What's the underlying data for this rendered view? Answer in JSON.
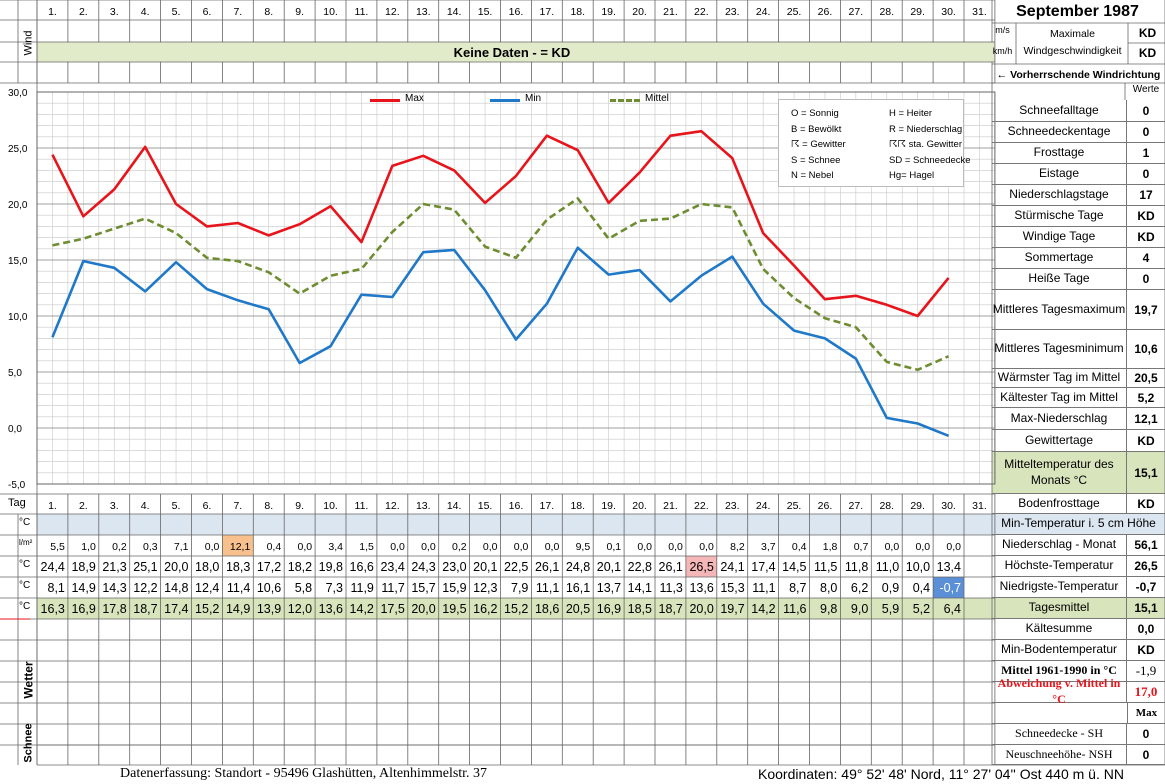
{
  "header": {
    "title": "September 1987",
    "day_labels": [
      "1.",
      "2.",
      "3.",
      "4.",
      "5.",
      "6.",
      "7.",
      "8.",
      "9.",
      "10.",
      "11.",
      "12.",
      "13.",
      "14.",
      "15.",
      "16.",
      "17.",
      "18.",
      "19.",
      "20.",
      "21.",
      "22.",
      "23.",
      "24.",
      "25.",
      "26.",
      "27.",
      "28.",
      "29.",
      "30.",
      "31."
    ],
    "wind_label": "Wind",
    "tag_label": "Tag",
    "no_data_text": "Keine Daten -  = KD",
    "unit_ms": "m/s",
    "unit_kmh": "km/h",
    "max_wind_label": "Maximale Windgeschwindigkeit",
    "max_wind_ms": "KD",
    "max_wind_kmh": "KD",
    "wind_direction_label": "← Vorherrschende Windrichtung",
    "werte_label": "Werte"
  },
  "legend_symbols": [
    "O = Sonnig",
    "H = Heiter",
    "B = Bewölkt",
    "R = Niederschlag",
    "☈ = Gewitter",
    "☈☈ sta. Gewitter",
    "S = Schnee",
    "SD = Schneedecke",
    "N = Nebel",
    "Hg= Hagel"
  ],
  "chart_data": {
    "type": "line",
    "categories": [
      "1",
      "2",
      "3",
      "4",
      "5",
      "6",
      "7",
      "8",
      "9",
      "10",
      "11",
      "12",
      "13",
      "14",
      "15",
      "16",
      "17",
      "18",
      "19",
      "20",
      "21",
      "22",
      "23",
      "24",
      "25",
      "26",
      "27",
      "28",
      "29",
      "30"
    ],
    "series": [
      {
        "name": "Max",
        "color": "#e8141b",
        "dashed": false,
        "values": [
          24.4,
          18.9,
          21.3,
          25.1,
          20.0,
          18.0,
          18.3,
          17.2,
          18.2,
          19.8,
          16.6,
          23.4,
          24.3,
          23.0,
          20.1,
          22.5,
          26.1,
          24.8,
          20.1,
          22.8,
          26.1,
          26.5,
          24.1,
          17.4,
          14.5,
          11.5,
          11.8,
          11.0,
          10.0,
          13.4
        ]
      },
      {
        "name": "Min",
        "color": "#1f78c8",
        "dashed": false,
        "values": [
          8.1,
          14.9,
          14.3,
          12.2,
          14.8,
          12.4,
          11.4,
          10.6,
          5.8,
          7.3,
          11.9,
          11.7,
          15.7,
          15.9,
          12.3,
          7.9,
          11.1,
          16.1,
          13.7,
          14.1,
          11.3,
          13.6,
          15.3,
          11.1,
          8.7,
          8.0,
          6.2,
          0.9,
          0.4,
          -0.7
        ]
      },
      {
        "name": "Mittel",
        "color": "#6e8c30",
        "dashed": true,
        "values": [
          16.3,
          16.9,
          17.8,
          18.7,
          17.4,
          15.2,
          14.9,
          13.9,
          12.0,
          13.6,
          14.2,
          17.5,
          20.0,
          19.5,
          16.2,
          15.2,
          18.6,
          20.5,
          16.9,
          18.5,
          18.7,
          20.0,
          19.7,
          14.2,
          11.6,
          9.8,
          9.0,
          5.9,
          5.2,
          6.4
        ]
      }
    ],
    "ylim": [
      -5,
      30
    ],
    "ytick_labels": [
      "30,0",
      "25,0",
      "20,0",
      "15,0",
      "10,0",
      "5,0",
      "0,0",
      "-5,0"
    ],
    "grid": true,
    "legend": "top"
  },
  "table": {
    "row_units": [
      "°C",
      "l/m²",
      "°C",
      "°C",
      "°C"
    ],
    "rows": [
      {
        "name": "bodenminimum",
        "values": [
          "",
          "",
          "",
          "",
          "",
          "",
          "",
          "",
          "",
          "",
          "",
          "",
          "",
          "",
          "",
          "",
          "",
          "",
          "",
          "",
          "",
          "",
          "",
          "",
          "",
          "",
          "",
          "",
          "",
          ""
        ]
      },
      {
        "name": "niederschlag",
        "values": [
          "5,5",
          "1,0",
          "0,2",
          "0,3",
          "7,1",
          "0,0",
          "12,1",
          "0,4",
          "0,0",
          "3,4",
          "1,5",
          "0,0",
          "0,0",
          "0,2",
          "0,0",
          "0,0",
          "0,0",
          "9,5",
          "0,1",
          "0,0",
          "0,0",
          "0,0",
          "8,2",
          "3,7",
          "0,4",
          "1,8",
          "0,7",
          "0,0",
          "0,0",
          "0,0"
        ]
      },
      {
        "name": "max",
        "values": [
          "24,4",
          "18,9",
          "21,3",
          "25,1",
          "20,0",
          "18,0",
          "18,3",
          "17,2",
          "18,2",
          "19,8",
          "16,6",
          "23,4",
          "24,3",
          "23,0",
          "20,1",
          "22,5",
          "26,1",
          "24,8",
          "20,1",
          "22,8",
          "26,1",
          "26,5",
          "24,1",
          "17,4",
          "14,5",
          "11,5",
          "11,8",
          "11,0",
          "10,0",
          "13,4"
        ]
      },
      {
        "name": "min",
        "values": [
          "8,1",
          "14,9",
          "14,3",
          "12,2",
          "14,8",
          "12,4",
          "11,4",
          "10,6",
          "5,8",
          "7,3",
          "11,9",
          "11,7",
          "15,7",
          "15,9",
          "12,3",
          "7,9",
          "11,1",
          "16,1",
          "13,7",
          "14,1",
          "11,3",
          "13,6",
          "15,3",
          "11,1",
          "8,7",
          "8,0",
          "6,2",
          "0,9",
          "0,4",
          "-0,7"
        ]
      },
      {
        "name": "mittel",
        "values": [
          "16,3",
          "16,9",
          "17,8",
          "18,7",
          "17,4",
          "15,2",
          "14,9",
          "13,9",
          "12,0",
          "13,6",
          "14,2",
          "17,5",
          "20,0",
          "19,5",
          "16,2",
          "15,2",
          "18,6",
          "20,5",
          "16,9",
          "18,5",
          "18,7",
          "20,0",
          "19,7",
          "14,2",
          "11,6",
          "9,8",
          "9,0",
          "5,9",
          "5,2",
          "6,4"
        ]
      }
    ],
    "wetter_label": "Wetter",
    "schnee_label": "Schnee"
  },
  "stats": [
    {
      "label": "Schneefalltage",
      "value": "0"
    },
    {
      "label": "Schneedeckentage",
      "value": "0"
    },
    {
      "label": "Frosttage",
      "value": "1"
    },
    {
      "label": "Eistage",
      "value": "0"
    },
    {
      "label": "Niederschlagstage",
      "value": "17"
    },
    {
      "label": "Stürmische Tage",
      "value": "KD"
    },
    {
      "label": "Windige Tage",
      "value": "KD"
    },
    {
      "label": "Sommertage",
      "value": "4"
    },
    {
      "label": "Heiße Tage",
      "value": "0"
    },
    {
      "label": "Mittleres Tagesmaximum",
      "value": "19,7"
    },
    {
      "label": "Mittleres Tagesminimum",
      "value": "10,6"
    },
    {
      "label": "Wärmster Tag im Mittel",
      "value": "20,5"
    },
    {
      "label": "Kältester Tag im Mittel",
      "value": "5,2"
    },
    {
      "label": "Max-Niederschlag",
      "value": "12,1"
    },
    {
      "label": "Gewittertage",
      "value": "KD"
    },
    {
      "label": "Mitteltemperatur des Monats °C",
      "value": "15,1"
    },
    {
      "label": "Bodenfrosttage",
      "value": "KD"
    },
    {
      "label": "Min-Temperatur i. 5 cm Höhe",
      "value": ""
    },
    {
      "label": "Niederschlag - Monat",
      "value": "56,1"
    },
    {
      "label": "Höchste-Temperatur",
      "value": "26,5"
    },
    {
      "label": "Niedrigste-Temperatur",
      "value": "-0,7"
    },
    {
      "label": "Tagesmittel",
      "value": "15,1"
    },
    {
      "label": "Kältesumme",
      "value": "0,0"
    },
    {
      "label": "Min-Bodentemperatur",
      "value": "KD"
    },
    {
      "label": "Mittel 1961-1990 in °C",
      "value": "-1,9"
    },
    {
      "label": "Abweichung v. Mittel in °C",
      "value": "17,0"
    },
    {
      "label": "",
      "value": "Max"
    },
    {
      "label": "Schneedecke -   SH",
      "value": "0"
    },
    {
      "label": "Neuschneehöhe- NSH",
      "value": "0"
    }
  ],
  "footer": {
    "left": "Datenerfassung:  Standort -   95496  Glashütten, Altenhimmelstr. 37",
    "right": "Koordinaten:  49° 52' 48' Nord,   11° 27' 04'' Ost   440 m ü. NN"
  },
  "colors": {
    "header_green": "#e2ebc9",
    "row_blue": "#dce6f1",
    "mittel_green": "#d8e4bc",
    "highlight_orange": "#f8c08c",
    "highlight_pink": "#f4b6b6",
    "highlight_blue": "#5b8fd6"
  }
}
